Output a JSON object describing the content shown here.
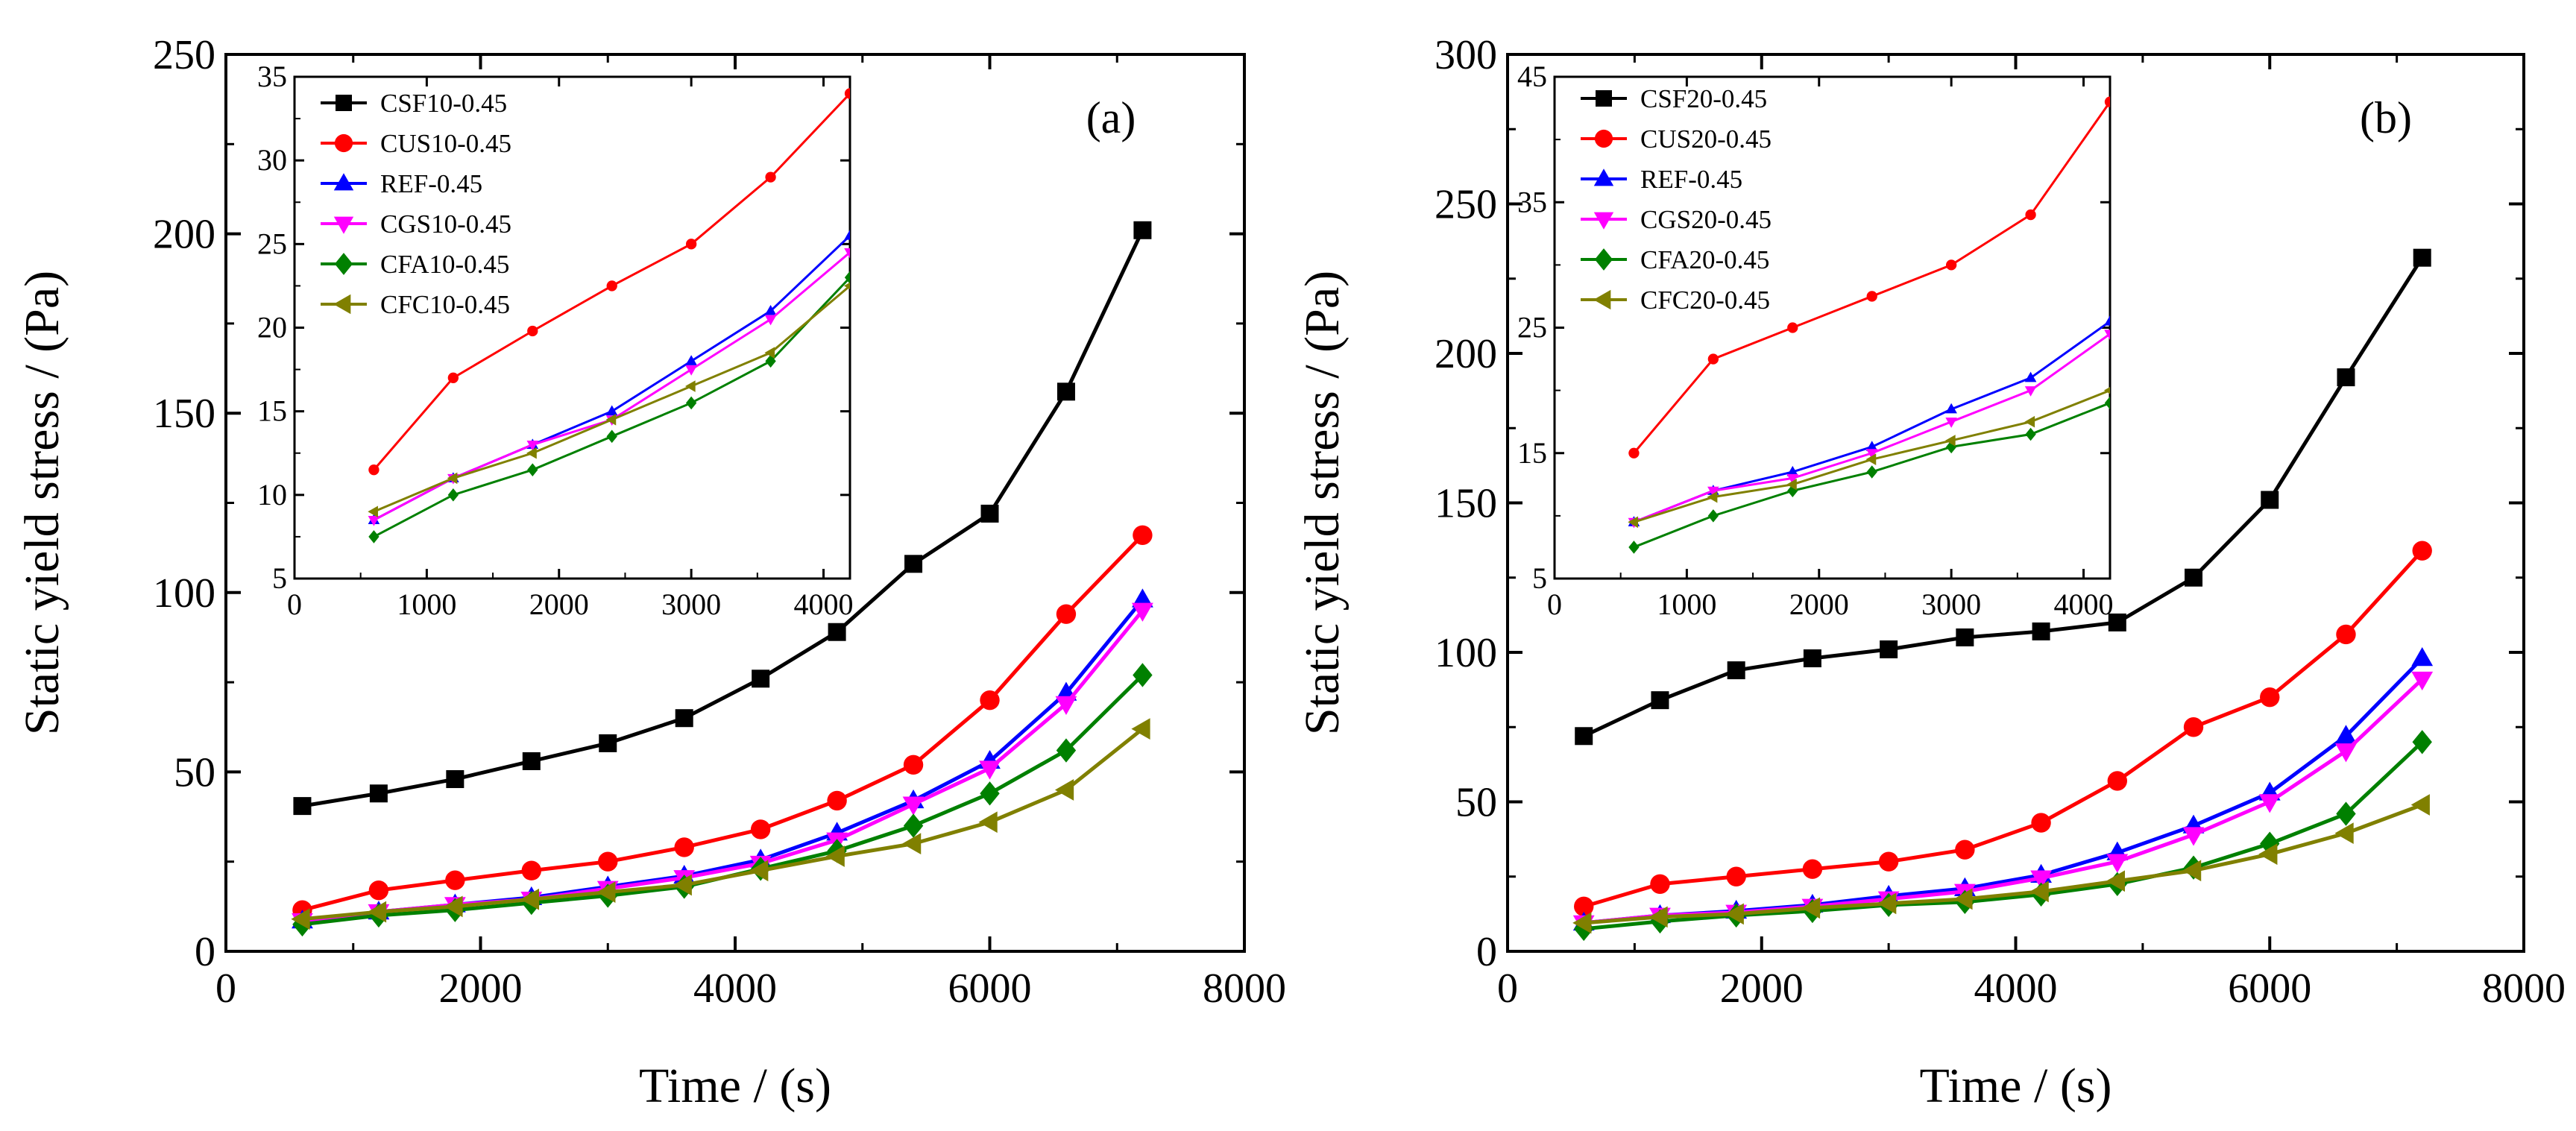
{
  "chart_data": [
    {
      "type": "line",
      "panel_label": "(a)",
      "xlabel": "Time / (s)",
      "ylabel": "Static yield stress / (Pa)",
      "xlim": [
        0,
        8000
      ],
      "ylim": [
        0,
        250
      ],
      "xticks": [
        0,
        2000,
        4000,
        6000,
        8000
      ],
      "yticks": [
        0,
        50,
        100,
        150,
        200,
        250
      ],
      "x": [
        600,
        1200,
        1800,
        2400,
        3000,
        3600,
        4200,
        4800,
        5400,
        6000,
        6600,
        7200
      ],
      "series": [
        {
          "name": "CSF10-0.45",
          "color": "#000000",
          "marker": "square",
          "values": [
            40.5,
            44,
            48,
            53,
            58,
            65,
            76,
            89,
            108,
            122,
            156,
            201
          ]
        },
        {
          "name": "CUS10-0.45",
          "color": "#ff0000",
          "marker": "circle",
          "values": [
            11.5,
            17,
            19.8,
            22.5,
            25,
            29,
            34,
            42,
            52,
            70,
            94,
            116
          ]
        },
        {
          "name": "REF-0.45",
          "color": "#0000ff",
          "marker": "triangle-up",
          "values": [
            8.5,
            11,
            13,
            15,
            18,
            21,
            25.5,
            33,
            42,
            53,
            72,
            98
          ]
        },
        {
          "name": "CGS10-0.45",
          "color": "#ff00ff",
          "marker": "triangle-down",
          "values": [
            8.5,
            11,
            13,
            14.5,
            17.5,
            20.5,
            24.5,
            31,
            41,
            51,
            69,
            95
          ]
        },
        {
          "name": "CFA10-0.45",
          "color": "#008000",
          "marker": "diamond",
          "values": [
            7.5,
            10,
            11.5,
            13.5,
            15.5,
            18,
            23,
            28,
            35,
            44,
            56,
            77
          ]
        },
        {
          "name": "CFC10-0.45",
          "color": "#808000",
          "marker": "triangle-left",
          "values": [
            9,
            11,
            12.5,
            14.5,
            16.5,
            18.5,
            22.5,
            26.5,
            30,
            36,
            45,
            62
          ]
        }
      ],
      "inset": {
        "xlim": [
          0,
          4200
        ],
        "ylim": [
          5,
          35
        ],
        "xticks": [
          0,
          1000,
          2000,
          3000,
          4000
        ],
        "yticks": [
          5,
          10,
          15,
          20,
          25,
          30,
          35
        ],
        "x": [
          600,
          1200,
          1800,
          2400,
          3000,
          3600,
          4200
        ]
      }
    },
    {
      "type": "line",
      "panel_label": "(b)",
      "xlabel": "Time / (s)",
      "ylabel": "Static yield stress / (Pa)",
      "xlim": [
        0,
        8000
      ],
      "ylim": [
        0,
        300
      ],
      "xticks": [
        0,
        2000,
        4000,
        6000,
        8000
      ],
      "yticks": [
        0,
        50,
        100,
        150,
        200,
        250,
        300
      ],
      "x": [
        600,
        1200,
        1800,
        2400,
        3000,
        3600,
        4200,
        4800,
        5400,
        6000,
        6600,
        7200
      ],
      "series": [
        {
          "name": "CSF20-0.45",
          "color": "#000000",
          "marker": "square",
          "values": [
            72,
            84,
            94,
            98,
            101,
            105,
            107,
            110,
            125,
            151,
            192,
            232
          ]
        },
        {
          "name": "CUS20-0.45",
          "color": "#ff0000",
          "marker": "circle",
          "values": [
            15,
            22.5,
            25,
            27.5,
            30,
            34,
            43,
            57,
            75,
            85,
            106,
            134
          ]
        },
        {
          "name": "REF-0.45",
          "color": "#0000ff",
          "marker": "triangle-up",
          "values": [
            9.5,
            12,
            13.5,
            15.5,
            18.5,
            21,
            25.5,
            33,
            42,
            53,
            72,
            98
          ]
        },
        {
          "name": "CGS20-0.45",
          "color": "#ff00ff",
          "marker": "triangle-down",
          "values": [
            9.5,
            12,
            13,
            15,
            17.5,
            20,
            24.5,
            30,
            39,
            50,
            67,
            91
          ]
        },
        {
          "name": "CFA20-0.45",
          "color": "#008000",
          "marker": "diamond",
          "values": [
            7.5,
            10,
            12,
            13.5,
            15.5,
            16.5,
            19,
            22.5,
            28,
            36,
            46,
            70
          ]
        },
        {
          "name": "CFC20-0.45",
          "color": "#808000",
          "marker": "triangle-left",
          "values": [
            9.5,
            11.5,
            12.5,
            14.5,
            16,
            17.5,
            20,
            23.5,
            27,
            32.5,
            39.5,
            49
          ]
        }
      ],
      "inset": {
        "xlim": [
          0,
          4200
        ],
        "ylim": [
          5,
          45
        ],
        "xticks": [
          0,
          1000,
          2000,
          3000,
          4000
        ],
        "yticks": [
          5,
          15,
          25,
          35,
          45
        ],
        "x": [
          600,
          1200,
          1800,
          2400,
          3000,
          3600,
          4200
        ]
      }
    }
  ]
}
